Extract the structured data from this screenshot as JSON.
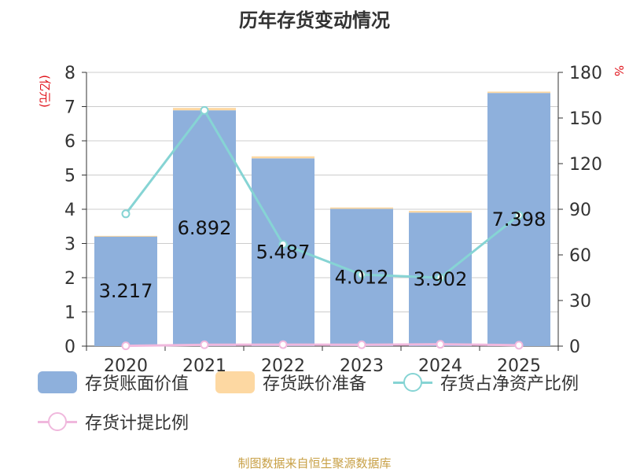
{
  "title": "历年存货变动情况",
  "source": "制图数据来自恒生聚源数据库",
  "colors": {
    "book_value": "#8eb0dc",
    "reserve": "#fdd8a2",
    "ratio_net_assets": "#86d4d4",
    "provision_ratio": "#f0b8dd",
    "axis_unit": "#e0121a",
    "grid": "#cccccc",
    "text": "#333333"
  },
  "chart_data": {
    "type": "bar",
    "categories": [
      "2020",
      "2021",
      "2022",
      "2023",
      "2024",
      "2025"
    ],
    "left_axis": {
      "unit_label": "(亿元)",
      "ylim": [
        0,
        8
      ],
      "ticks": [
        "0",
        "1",
        "2",
        "3",
        "4",
        "5",
        "6",
        "7",
        "8"
      ]
    },
    "right_axis": {
      "unit_label": "%",
      "ylim": [
        0,
        180
      ],
      "ticks": [
        "0",
        "30",
        "60",
        "90",
        "120",
        "150",
        "180"
      ]
    },
    "series": [
      {
        "name": "存货账面价值",
        "kind": "bar",
        "axis": "left",
        "values": [
          3.217,
          6.892,
          5.487,
          4.012,
          3.902,
          7.398
        ],
        "labels": [
          "3.217",
          "6.892",
          "5.487",
          "4.012",
          "3.902",
          "7.398"
        ]
      },
      {
        "name": "存货跌价准备",
        "kind": "bar-stacked",
        "axis": "left",
        "values": [
          0.005,
          0.07,
          0.06,
          0.04,
          0.05,
          0.04
        ]
      },
      {
        "name": "存货占净资产比例",
        "kind": "line",
        "axis": "right",
        "values": [
          87,
          155,
          67,
          47,
          45,
          86
        ]
      },
      {
        "name": "存货计提比例",
        "kind": "line",
        "axis": "right",
        "values": [
          0.2,
          0.9,
          1.0,
          0.9,
          1.2,
          0.6
        ]
      }
    ],
    "grid": true,
    "legend_position": "bottom"
  }
}
